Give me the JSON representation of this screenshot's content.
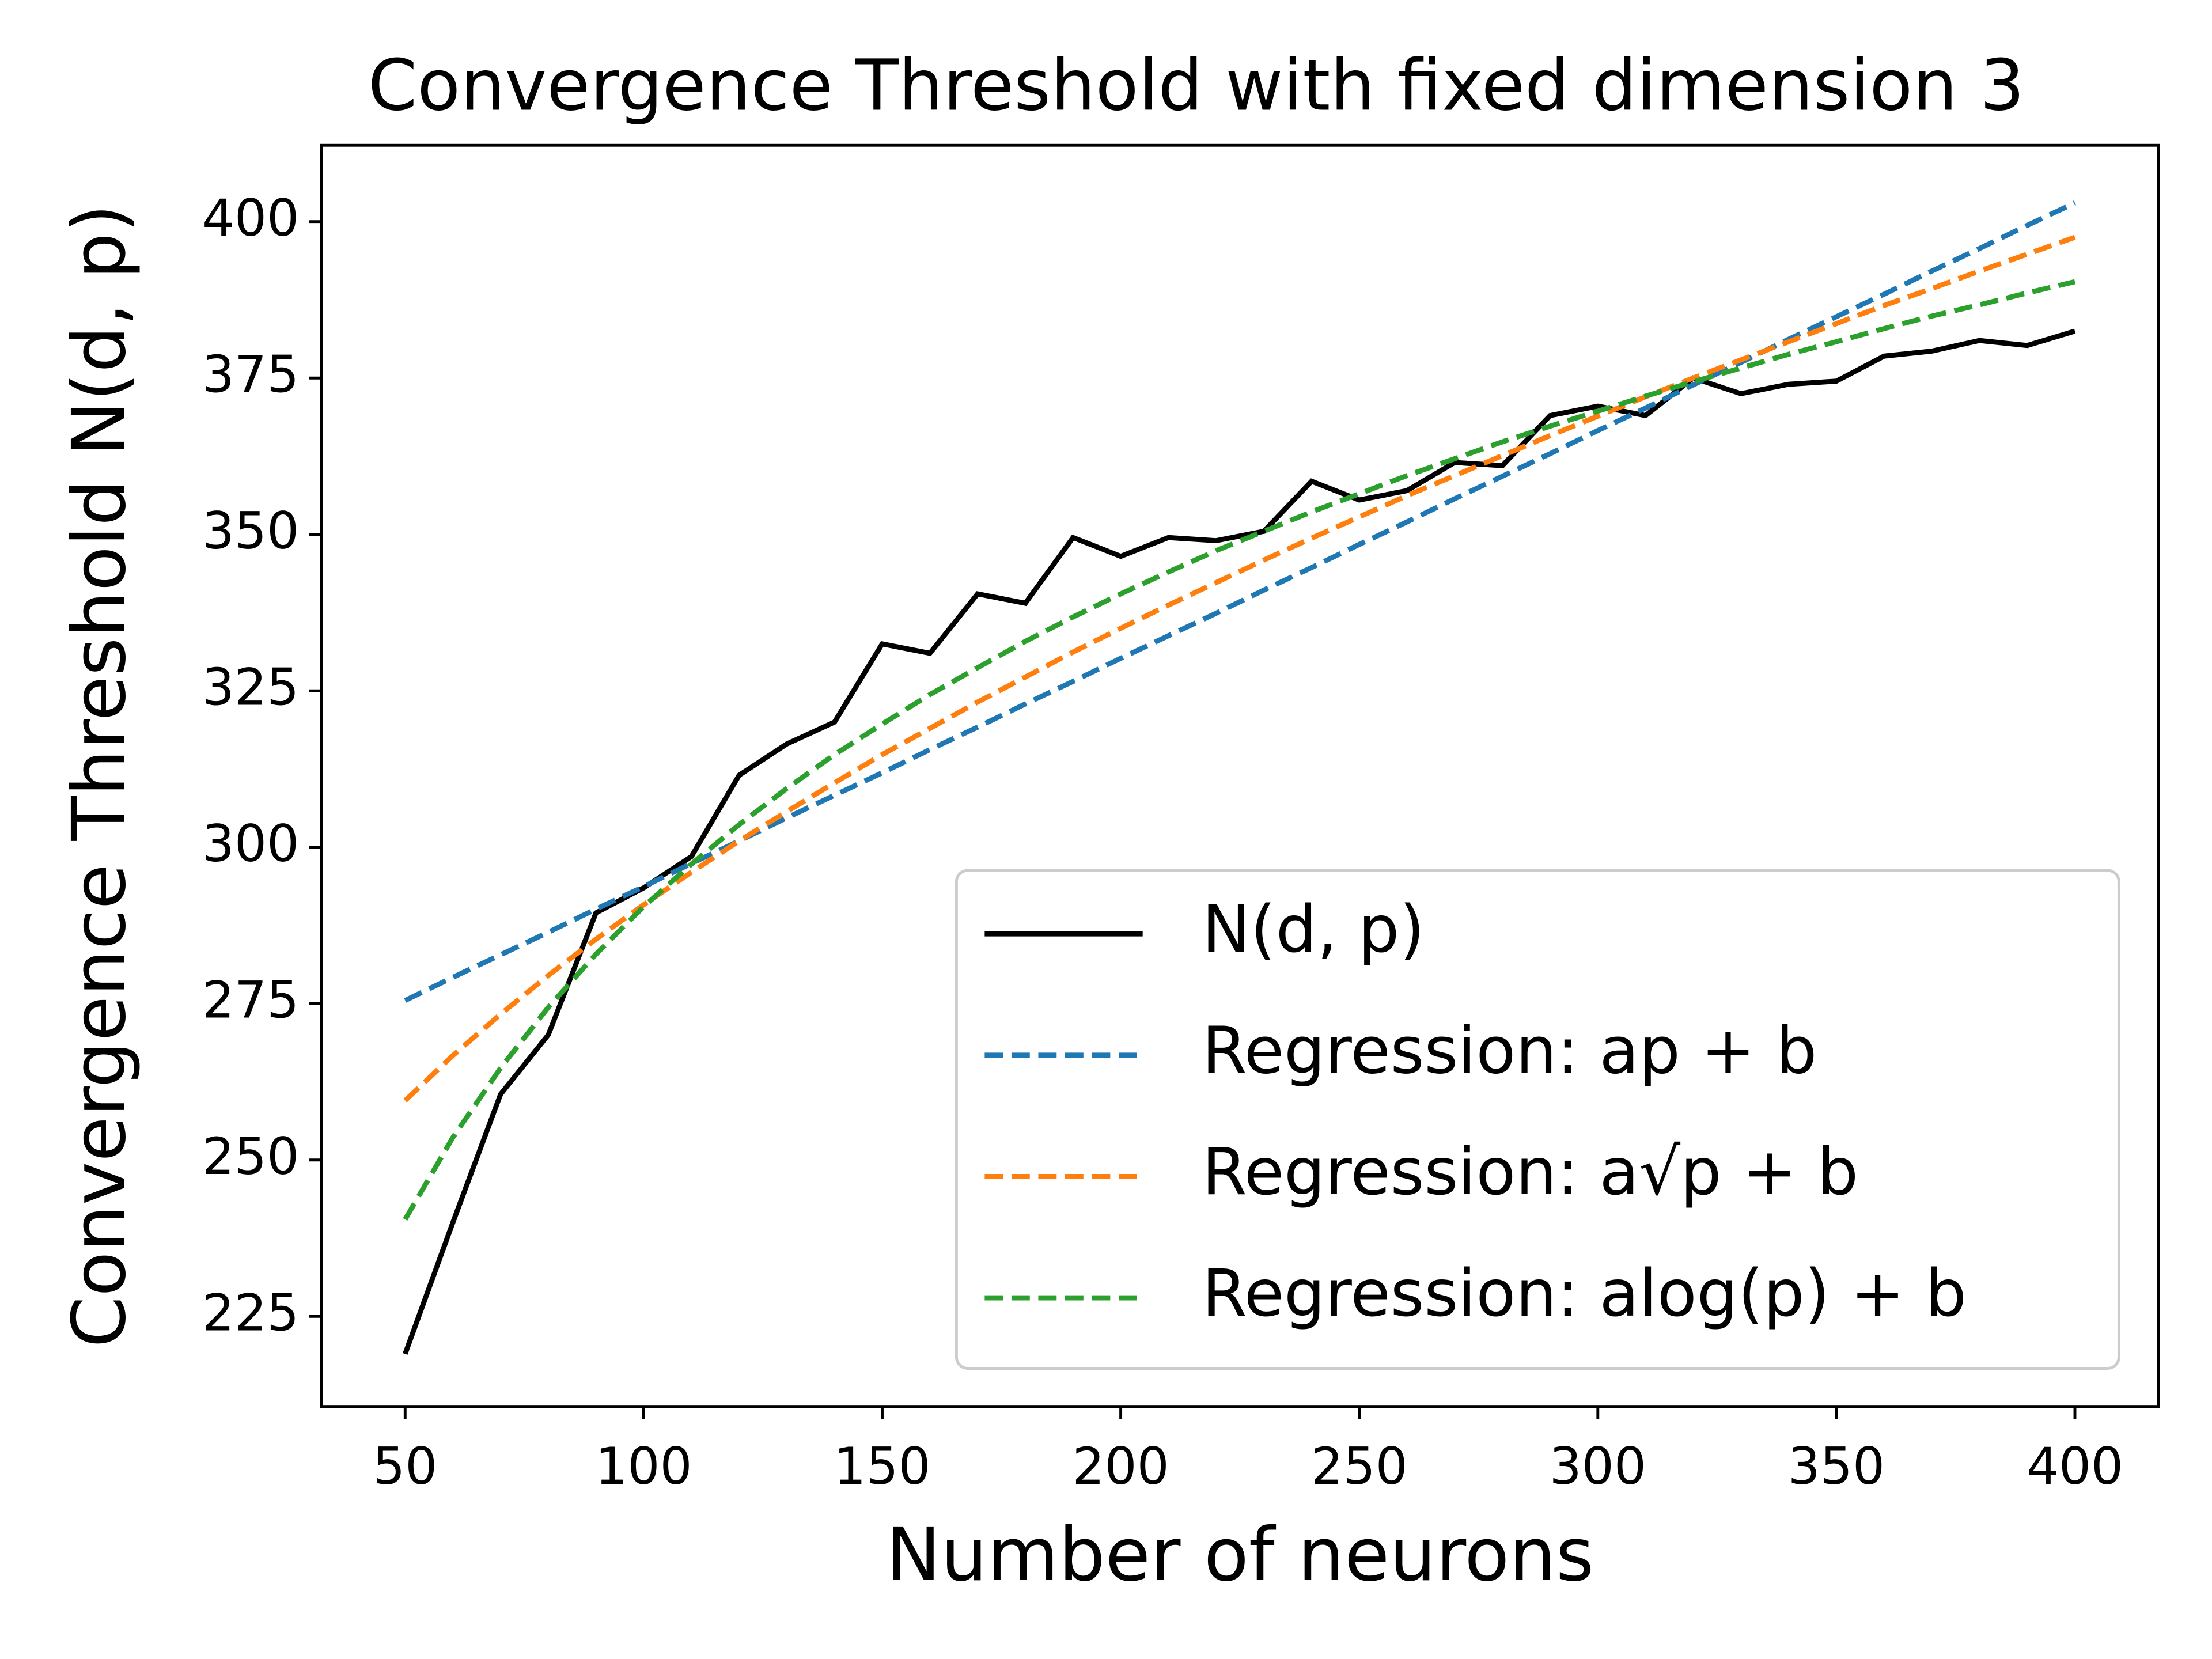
{
  "chart_data": {
    "type": "line",
    "title": "Convergence Threshold with fixed dimension 3",
    "x_label": "Number of neurons",
    "y_label": "Convergence Threshold N(d, p)",
    "x": [
      50,
      60,
      70,
      80,
      90,
      100,
      110,
      120,
      130,
      140,
      150,
      160,
      170,
      180,
      190,
      200,
      210,
      220,
      230,
      240,
      250,
      260,
      270,
      280,
      290,
      300,
      310,
      320,
      330,
      340,
      350,
      360,
      370,
      380,
      390,
      400
    ],
    "series": [
      {
        "name": "N(d, p)",
        "color": "#000000",
        "linestyle": "solid",
        "values": [
          219,
          240,
          260.5,
          270,
          289.5,
          293.5,
          298.5,
          311.5,
          316.5,
          320,
          332.5,
          331,
          340.5,
          339,
          349.5,
          346.5,
          349.5,
          349,
          350.5,
          358.5,
          355.5,
          357,
          361.5,
          361,
          369,
          370.5,
          369,
          375,
          372.5,
          374,
          374.5,
          378.5,
          379.3,
          381,
          380.2,
          382.5
        ]
      },
      {
        "name": "Regression: ap + b",
        "color": "#1f77b4",
        "linestyle": "dashed",
        "values": [
          275.5,
          279.2,
          282.8,
          286.4,
          290.1,
          293.7,
          297.4,
          301.0,
          304.7,
          308.3,
          311.9,
          315.6,
          319.2,
          322.9,
          326.5,
          330.2,
          333.8,
          337.4,
          341.1,
          344.7,
          348.4,
          352.0,
          355.7,
          359.3,
          362.9,
          366.6,
          370.2,
          373.9,
          377.5,
          381.2,
          384.8,
          388.4,
          392.1,
          395.7,
          399.4,
          403.0
        ]
      },
      {
        "name": "Regression: a√p + b",
        "color": "#ff7f0e",
        "linestyle": "dashed",
        "values": [
          259.5,
          266.7,
          273.3,
          279.5,
          285.3,
          290.8,
          296.0,
          301.0,
          305.7,
          310.3,
          314.8,
          319.0,
          323.2,
          327.2,
          331.2,
          335.0,
          338.7,
          342.3,
          345.9,
          349.4,
          352.8,
          356.2,
          359.4,
          362.6,
          365.8,
          368.9,
          372.0,
          375.0,
          377.9,
          380.8,
          383.7,
          386.6,
          389.3,
          392.1,
          394.8,
          397.5
        ]
      },
      {
        "name": "Regression: alog(p) + b",
        "color": "#2ca02c",
        "linestyle": "dashed",
        "values": [
          240.5,
          253.6,
          264.7,
          274.4,
          282.9,
          290.5,
          297.3,
          303.6,
          309.4,
          314.8,
          319.7,
          324.4,
          328.7,
          332.9,
          336.8,
          340.5,
          344.0,
          347.4,
          350.5,
          353.6,
          356.5,
          359.4,
          362.1,
          364.8,
          367.3,
          369.7,
          372.1,
          374.4,
          376.6,
          378.8,
          380.8,
          382.9,
          384.9,
          386.7,
          388.6,
          390.4
        ]
      }
    ],
    "xlim": [
      32.5,
      417.5
    ],
    "xticks": [
      50,
      100,
      150,
      200,
      250,
      300,
      350,
      400
    ],
    "ylim": [
      210.6,
      412.2
    ],
    "yticks": [
      225,
      250,
      275,
      300,
      325,
      350,
      375,
      400
    ],
    "grid": false,
    "legend": "lower right"
  }
}
